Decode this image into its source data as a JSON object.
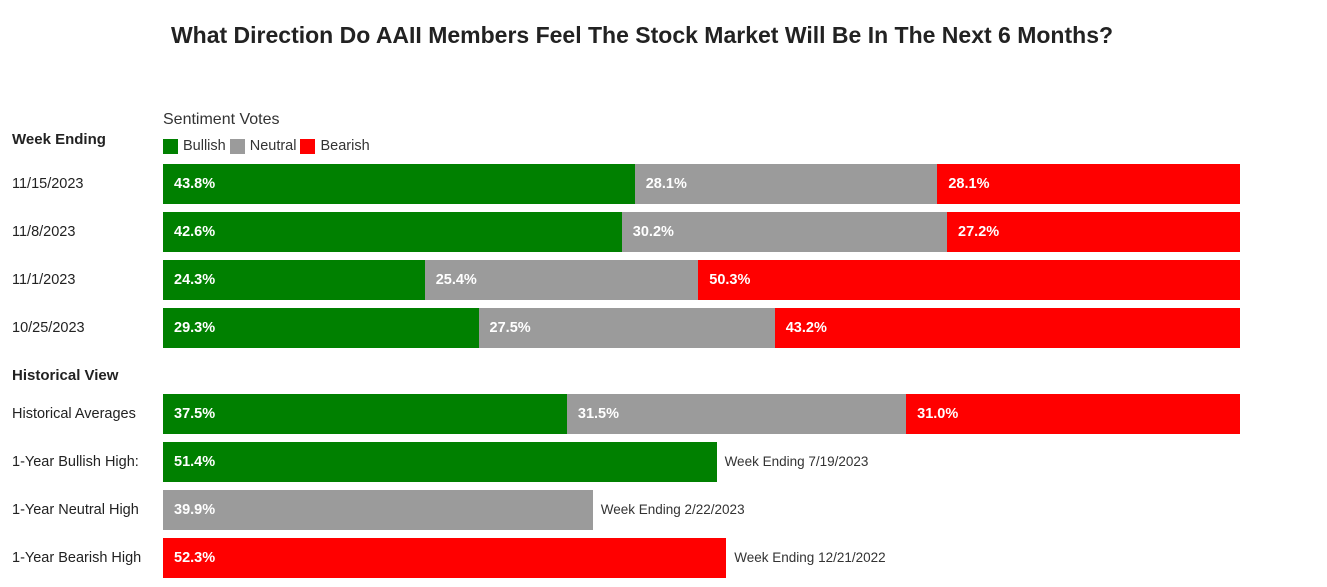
{
  "chart_data": {
    "type": "bar",
    "stacked": true,
    "orientation": "horizontal",
    "title": "What Direction Do AAII Members Feel The Stock Market Will Be In The Next 6 Months?",
    "legend_title": "Sentiment Votes",
    "legend": [
      {
        "name": "Bullish",
        "color": "#008000"
      },
      {
        "name": "Neutral",
        "color": "#9b9b9b"
      },
      {
        "name": "Bearish",
        "color": "#ff0000"
      }
    ],
    "week_header": "Week Ending",
    "historical_header": "Historical View",
    "weeks": [
      {
        "label": "11/15/2023",
        "values": [
          43.8,
          28.1,
          28.1
        ],
        "texts": [
          "43.8%",
          "28.1%",
          "28.1%"
        ]
      },
      {
        "label": "11/8/2023",
        "values": [
          42.6,
          30.2,
          27.2
        ],
        "texts": [
          "42.6%",
          "30.2%",
          "27.2%"
        ]
      },
      {
        "label": "11/1/2023",
        "values": [
          24.3,
          25.4,
          50.3
        ],
        "texts": [
          "24.3%",
          "25.4%",
          "50.3%"
        ]
      },
      {
        "label": "10/25/2023",
        "values": [
          29.3,
          27.5,
          43.2
        ],
        "texts": [
          "29.3%",
          "27.5%",
          "43.2%"
        ]
      }
    ],
    "historical_average": {
      "label": "Historical Averages",
      "values": [
        37.5,
        31.5,
        31.0
      ],
      "texts": [
        "37.5%",
        "31.5%",
        "31.0%"
      ]
    },
    "highs": [
      {
        "label": "1-Year Bullish High:",
        "series": "Bullish",
        "value": 51.4,
        "text": "51.4%",
        "note": "Week Ending 7/19/2023"
      },
      {
        "label": "1-Year Neutral High",
        "series": "Neutral",
        "value": 39.9,
        "text": "39.9%",
        "note": "Week Ending 2/22/2023"
      },
      {
        "label": "1-Year Bearish High",
        "series": "Bearish",
        "value": 52.3,
        "text": "52.3%",
        "note": "Week Ending 12/21/2022"
      }
    ],
    "xlim": [
      0,
      100
    ]
  }
}
